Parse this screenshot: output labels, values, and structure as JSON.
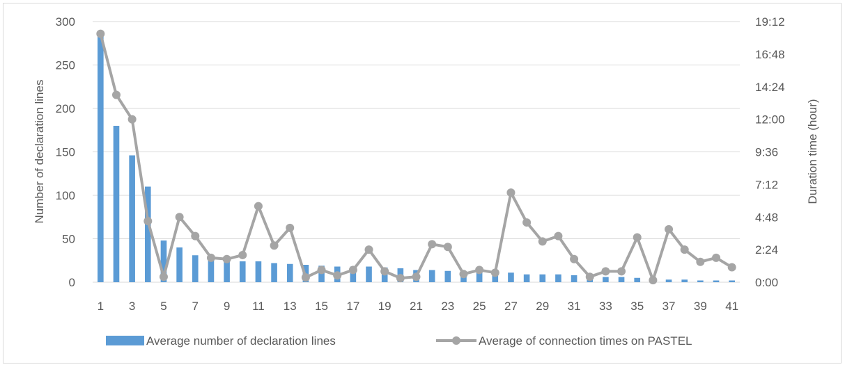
{
  "chart_data": {
    "type": "bar+line",
    "x": [
      1,
      2,
      3,
      4,
      5,
      6,
      7,
      8,
      9,
      10,
      11,
      12,
      13,
      14,
      15,
      16,
      17,
      18,
      19,
      20,
      21,
      22,
      23,
      24,
      25,
      26,
      27,
      28,
      29,
      30,
      31,
      32,
      33,
      34,
      35,
      36,
      37,
      38,
      39,
      40,
      41
    ],
    "x_tick_labels": [
      "1",
      "3",
      "5",
      "7",
      "9",
      "11",
      "13",
      "15",
      "17",
      "19",
      "21",
      "23",
      "25",
      "27",
      "29",
      "31",
      "33",
      "35",
      "37",
      "39",
      "41"
    ],
    "ylabel_left": "Number of declaration lines",
    "ylabel_right": "Duration time (hour)",
    "ylim_left": [
      0,
      300
    ],
    "y_ticks_left": [
      "0",
      "50",
      "100",
      "150",
      "200",
      "250",
      "300"
    ],
    "ylim_right_hours": [
      0,
      19.2
    ],
    "y_ticks_right": [
      "0:00",
      "2:24",
      "4:48",
      "7:12",
      "9:36",
      "12:00",
      "14:24",
      "16:48",
      "19:12"
    ],
    "grid": "horizontal",
    "legend_position": "bottom",
    "series": [
      {
        "name": "Average number of declaration lines",
        "type": "bar",
        "axis": "left",
        "color": "#5b9bd5",
        "values": [
          286,
          180,
          146,
          110,
          48,
          40,
          31,
          28,
          25,
          24,
          24,
          22,
          21,
          20,
          19,
          18,
          18,
          18,
          17,
          16,
          14,
          14,
          13,
          12,
          11,
          11,
          11,
          9,
          9,
          9,
          8,
          7,
          6,
          6,
          5,
          4,
          3,
          3,
          2,
          2,
          2
        ]
      },
      {
        "name": "Average of connection times on PASTEL",
        "type": "line",
        "axis": "right",
        "color": "#a5a5a5",
        "values_hours": [
          18.3,
          13.8,
          12.0,
          4.5,
          0.4,
          4.8,
          3.4,
          1.8,
          1.7,
          2.0,
          5.6,
          2.7,
          4.0,
          0.35,
          0.9,
          0.5,
          0.9,
          2.4,
          0.8,
          0.3,
          0.4,
          2.8,
          2.6,
          0.6,
          0.9,
          0.7,
          6.6,
          4.4,
          3.0,
          3.4,
          1.7,
          0.4,
          0.8,
          0.8,
          3.3,
          0.15,
          3.9,
          2.4,
          1.5,
          1.8,
          1.1
        ]
      }
    ]
  }
}
